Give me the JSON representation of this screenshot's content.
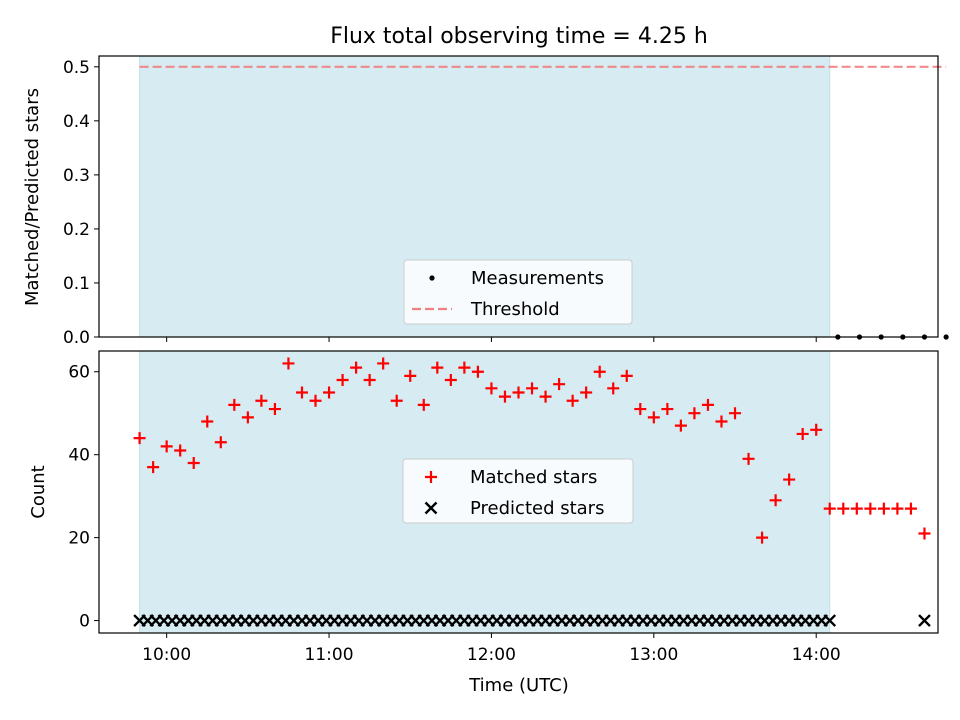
{
  "chart_data": [
    {
      "type": "scatter",
      "title": "Flux total observing time = 4.25 h",
      "ylabel": "Matched/Predicted stars",
      "xlabel": "",
      "ylim": [
        0,
        0.52
      ],
      "yticks": [
        0.0,
        0.1,
        0.2,
        0.3,
        0.4,
        0.5
      ],
      "ytick_labels": [
        "0.0",
        "0.1",
        "0.2",
        "0.3",
        "0.4",
        "0.5"
      ],
      "shaded_interval": [
        "09:50",
        "14:05"
      ],
      "shade_color": "#add8e6",
      "legend": {
        "position": "lower center",
        "entries": [
          "Measurements",
          "Threshold"
        ]
      },
      "series": [
        {
          "name": "Measurements",
          "color": "#000000",
          "marker": "dot",
          "x": [
            "14:08",
            "14:16",
            "14:24",
            "14:32",
            "14:40",
            "14:48"
          ],
          "y": [
            0,
            0,
            0,
            0,
            0,
            0
          ]
        },
        {
          "name": "Threshold",
          "color": "#f08080",
          "style": "dashed",
          "x": [
            "09:50",
            "14:48"
          ],
          "y": [
            0.5,
            0.5
          ]
        }
      ]
    },
    {
      "type": "scatter",
      "title": "",
      "ylabel": "Count",
      "xlabel": "Time (UTC)",
      "xlim": [
        "09:35",
        "14:45"
      ],
      "xticks": [
        "10:00",
        "11:00",
        "12:00",
        "13:00",
        "14:00"
      ],
      "ylim": [
        -3,
        65
      ],
      "yticks": [
        0,
        20,
        40,
        60
      ],
      "ytick_labels": [
        "0",
        "20",
        "40",
        "60"
      ],
      "shaded_interval": [
        "09:50",
        "14:05"
      ],
      "shade_color": "#add8e6",
      "legend": {
        "position": "center",
        "entries": [
          "Matched stars",
          "Predicted stars"
        ]
      },
      "series": [
        {
          "name": "Matched stars",
          "color": "#ff0000",
          "marker": "plus",
          "x": [
            "09:50",
            "09:55",
            "10:00",
            "10:05",
            "10:10",
            "10:15",
            "10:20",
            "10:25",
            "10:30",
            "10:35",
            "10:40",
            "10:45",
            "10:50",
            "10:55",
            "11:00",
            "11:05",
            "11:10",
            "11:15",
            "11:20",
            "11:25",
            "11:30",
            "11:35",
            "11:40",
            "11:45",
            "11:50",
            "11:55",
            "12:00",
            "12:05",
            "12:10",
            "12:15",
            "12:20",
            "12:25",
            "12:30",
            "12:35",
            "12:40",
            "12:45",
            "12:50",
            "12:55",
            "13:00",
            "13:05",
            "13:10",
            "13:15",
            "13:20",
            "13:25",
            "13:30",
            "13:35",
            "13:40",
            "13:45",
            "13:50",
            "13:55",
            "14:00",
            "14:05",
            "14:10",
            "14:15",
            "14:20",
            "14:25",
            "14:30",
            "14:35",
            "14:40"
          ],
          "y": [
            44,
            37,
            42,
            41,
            38,
            48,
            43,
            52,
            49,
            53,
            51,
            62,
            55,
            53,
            55,
            58,
            61,
            58,
            62,
            53,
            59,
            52,
            61,
            58,
            61,
            60,
            56,
            54,
            55,
            56,
            54,
            57,
            53,
            55,
            60,
            56,
            59,
            51,
            49,
            51,
            47,
            50,
            52,
            48,
            50,
            39,
            20,
            29,
            34,
            45,
            46,
            27,
            27,
            27,
            27,
            27,
            27,
            27,
            21
          ]
        },
        {
          "name": "Predicted stars",
          "color": "#000000",
          "marker": "x",
          "x": [
            "09:50",
            "09:53",
            "09:56",
            "09:59",
            "10:02",
            "10:05",
            "10:08",
            "10:11",
            "10:14",
            "10:17",
            "10:20",
            "10:23",
            "10:26",
            "10:29",
            "10:32",
            "10:35",
            "10:38",
            "10:41",
            "10:44",
            "10:47",
            "10:50",
            "10:53",
            "10:56",
            "10:59",
            "11:02",
            "11:05",
            "11:08",
            "11:11",
            "11:14",
            "11:17",
            "11:20",
            "11:23",
            "11:26",
            "11:29",
            "11:32",
            "11:35",
            "11:38",
            "11:41",
            "11:44",
            "11:47",
            "11:50",
            "11:53",
            "11:56",
            "11:59",
            "12:02",
            "12:05",
            "12:08",
            "12:11",
            "12:14",
            "12:17",
            "12:20",
            "12:23",
            "12:26",
            "12:29",
            "12:32",
            "12:35",
            "12:38",
            "12:41",
            "12:44",
            "12:47",
            "12:50",
            "12:53",
            "12:56",
            "12:59",
            "13:02",
            "13:05",
            "13:08",
            "13:11",
            "13:14",
            "13:17",
            "13:20",
            "13:23",
            "13:26",
            "13:29",
            "13:32",
            "13:35",
            "13:38",
            "13:41",
            "13:44",
            "13:47",
            "13:50",
            "13:53",
            "13:56",
            "13:59",
            "14:02",
            "14:05",
            "14:40"
          ],
          "y": [
            0,
            0,
            0,
            0,
            0,
            0,
            0,
            0,
            0,
            0,
            0,
            0,
            0,
            0,
            0,
            0,
            0,
            0,
            0,
            0,
            0,
            0,
            0,
            0,
            0,
            0,
            0,
            0,
            0,
            0,
            0,
            0,
            0,
            0,
            0,
            0,
            0,
            0,
            0,
            0,
            0,
            0,
            0,
            0,
            0,
            0,
            0,
            0,
            0,
            0,
            0,
            0,
            0,
            0,
            0,
            0,
            0,
            0,
            0,
            0,
            0,
            0,
            0,
            0,
            0,
            0,
            0,
            0,
            0,
            0,
            0,
            0,
            0,
            0,
            0,
            0,
            0,
            0,
            0,
            0,
            0,
            0,
            0,
            0,
            0,
            0,
            0
          ]
        }
      ]
    }
  ]
}
